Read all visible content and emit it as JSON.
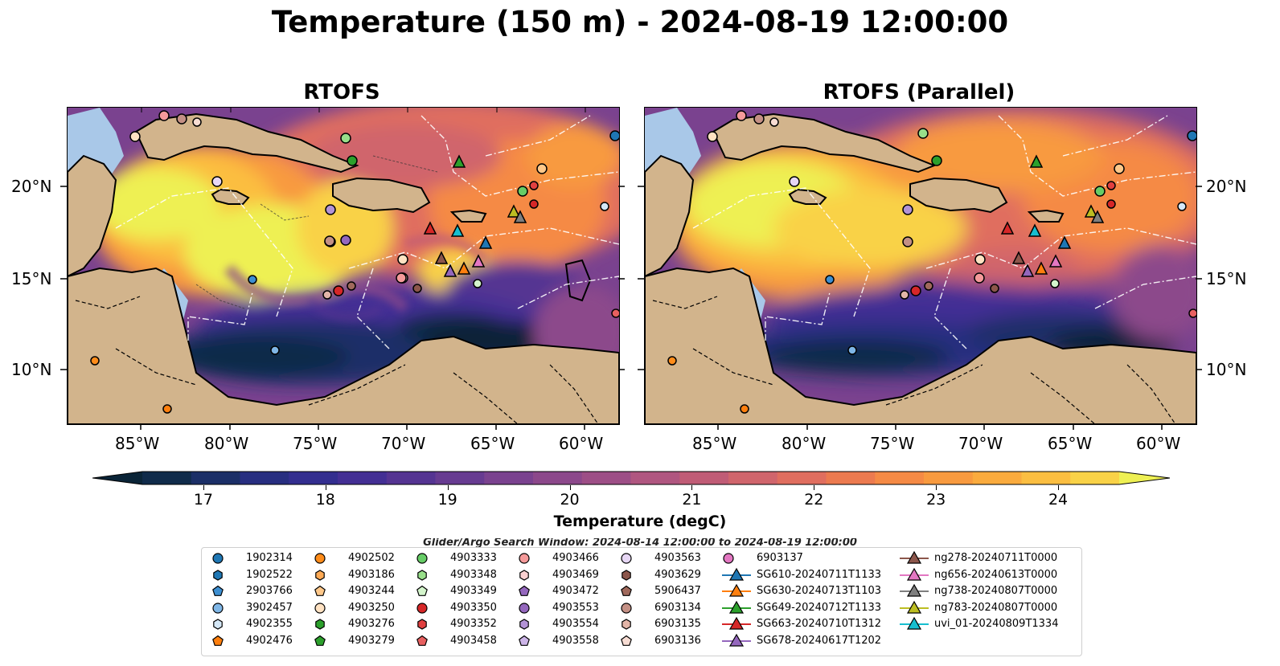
{
  "title": "Temperature (150 m) - 2024-08-19 12:00:00",
  "panels": [
    {
      "title": "RTOFS"
    },
    {
      "title": "RTOFS (Parallel)"
    }
  ],
  "axes": {
    "lon_ticks": [
      "85°W",
      "80°W",
      "75°W",
      "70°W",
      "65°W",
      "60°W"
    ],
    "lat_ticks": [
      "20°N",
      "15°N",
      "10°N"
    ]
  },
  "colorbar": {
    "label": "Temperature (degC)",
    "ticks": [
      "17",
      "18",
      "19",
      "20",
      "21",
      "22",
      "23",
      "24"
    ],
    "colors": [
      "#0a2437",
      "#102b4a",
      "#1b2f67",
      "#272e80",
      "#332e8f",
      "#432f94",
      "#553492",
      "#673b91",
      "#7a428f",
      "#8c488b",
      "#9d4e86",
      "#b05680",
      "#c05c76",
      "#d0656c",
      "#e06e5f",
      "#ec7a4f",
      "#f58a45",
      "#f89a3f",
      "#faab3e",
      "#fbbe41",
      "#f9d247",
      "#eef053"
    ]
  },
  "search_window": "Glider/Argo Search Window: 2024-08-14 12:00:00 to 2024-08-19 12:00:00",
  "legend": {
    "items": [
      {
        "label": "1902314",
        "marker": "circle",
        "color": "#1f77b4"
      },
      {
        "label": "1902522",
        "marker": "hexagon",
        "color": "#1f77b4"
      },
      {
        "label": "2903766",
        "marker": "pentagon",
        "color": "#3d8fd1"
      },
      {
        "label": "3902457",
        "marker": "circle",
        "color": "#7fb6e6"
      },
      {
        "label": "4902355",
        "marker": "hexagon",
        "color": "#d5e8f7"
      },
      {
        "label": "4902476",
        "marker": "pentagon",
        "color": "#ff7f0e"
      },
      {
        "label": "4902502",
        "marker": "circle",
        "color": "#ff8c1a"
      },
      {
        "label": "4903186",
        "marker": "hexagon",
        "color": "#ffaa55"
      },
      {
        "label": "4903244",
        "marker": "pentagon",
        "color": "#ffc88a"
      },
      {
        "label": "4903250",
        "marker": "circle",
        "color": "#ffe2c2"
      },
      {
        "label": "4903276",
        "marker": "hexagon",
        "color": "#2ca02c"
      },
      {
        "label": "4903279",
        "marker": "pentagon",
        "color": "#2ca02c"
      },
      {
        "label": "4903333",
        "marker": "circle",
        "color": "#66cc66"
      },
      {
        "label": "4903348",
        "marker": "hexagon",
        "color": "#98df8a"
      },
      {
        "label": "4903349",
        "marker": "pentagon",
        "color": "#d4f5cc"
      },
      {
        "label": "4903350",
        "marker": "circle",
        "color": "#d62728"
      },
      {
        "label": "4903352",
        "marker": "hexagon",
        "color": "#e04040"
      },
      {
        "label": "4903458",
        "marker": "pentagon",
        "color": "#e86060"
      },
      {
        "label": "4903466",
        "marker": "circle",
        "color": "#f59a9a"
      },
      {
        "label": "4903469",
        "marker": "hexagon",
        "color": "#fbd0d0"
      },
      {
        "label": "4903472",
        "marker": "pentagon",
        "color": "#9467bd"
      },
      {
        "label": "4903553",
        "marker": "circle",
        "color": "#9467bd"
      },
      {
        "label": "4903554",
        "marker": "hexagon",
        "color": "#b393d6"
      },
      {
        "label": "4903558",
        "marker": "pentagon",
        "color": "#cdb5e8"
      },
      {
        "label": "4903563",
        "marker": "circle",
        "color": "#e7d7f5"
      },
      {
        "label": "4903629",
        "marker": "hexagon",
        "color": "#8c564b"
      },
      {
        "label": "5906437",
        "marker": "pentagon",
        "color": "#a0695c"
      },
      {
        "label": "6903134",
        "marker": "circle",
        "color": "#c49085"
      },
      {
        "label": "6903135",
        "marker": "hexagon",
        "color": "#e3b5a8"
      },
      {
        "label": "6903136",
        "marker": "pentagon",
        "color": "#f7dcd3"
      },
      {
        "label": "6903137",
        "marker": "circle",
        "color": "#e377c2"
      },
      {
        "label": "SG610-20240711T1133",
        "marker": "triangle-line",
        "color": "#1f77b4"
      },
      {
        "label": "SG630-20240713T1103",
        "marker": "triangle-line",
        "color": "#ff7f0e"
      },
      {
        "label": "SG649-20240712T1133",
        "marker": "triangle-line",
        "color": "#2ca02c"
      },
      {
        "label": "SG663-20240710T1312",
        "marker": "triangle-line",
        "color": "#d62728"
      },
      {
        "label": "SG678-20240617T1202",
        "marker": "triangle-line",
        "color": "#9467bd"
      },
      {
        "label": "ng278-20240711T0000",
        "marker": "triangle-line",
        "color": "#8c564b"
      },
      {
        "label": "ng656-20240613T0000",
        "marker": "triangle-line",
        "color": "#e377c2"
      },
      {
        "label": "ng738-20240807T0000",
        "marker": "triangle-line",
        "color": "#7f7f7f"
      },
      {
        "label": "ng783-20240807T0000",
        "marker": "triangle-line",
        "color": "#bcbd22"
      },
      {
        "label": "uvi_01-20240809T1334",
        "marker": "triangle-line",
        "color": "#17becf"
      }
    ]
  },
  "palette": {
    "ocean": "#a9c8e8",
    "land": "#d2b48c",
    "boundary": "#000000"
  }
}
